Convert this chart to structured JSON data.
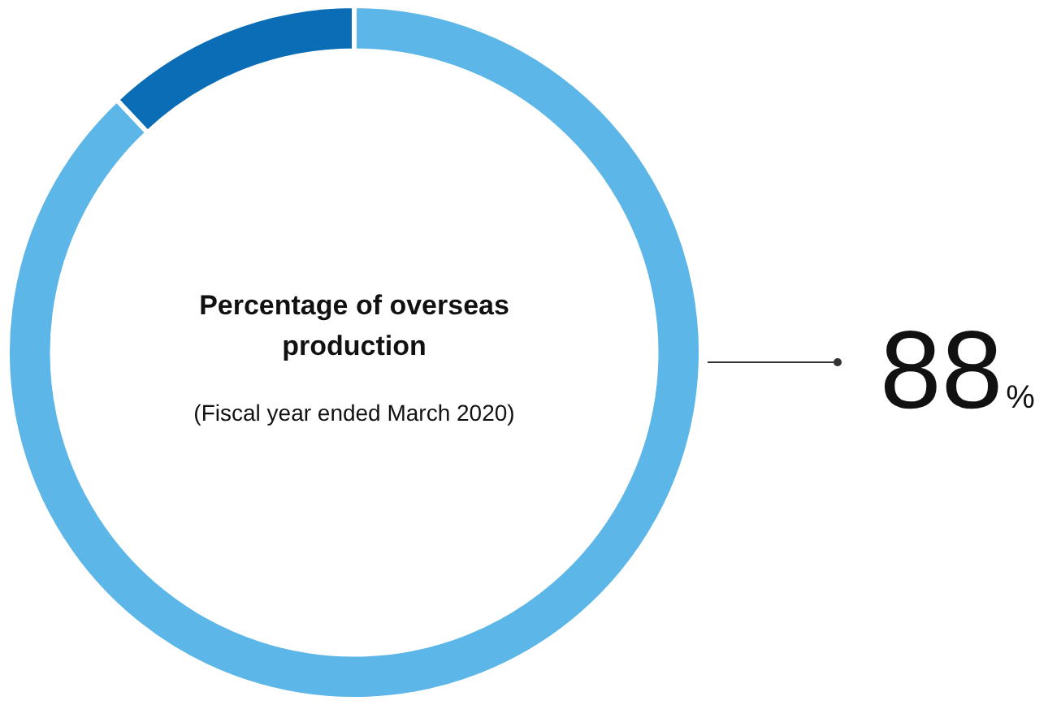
{
  "chart_data": {
    "type": "donut",
    "title": "Percentage of overseas production",
    "subtitle": "(Fiscal year ended March 2020)",
    "categories": [
      null,
      null
    ],
    "values": [
      88,
      12
    ],
    "colors": [
      "#5db6e8",
      "#0a6db6"
    ],
    "value_labels": [
      "88%",
      null
    ],
    "legend": false
  }
}
